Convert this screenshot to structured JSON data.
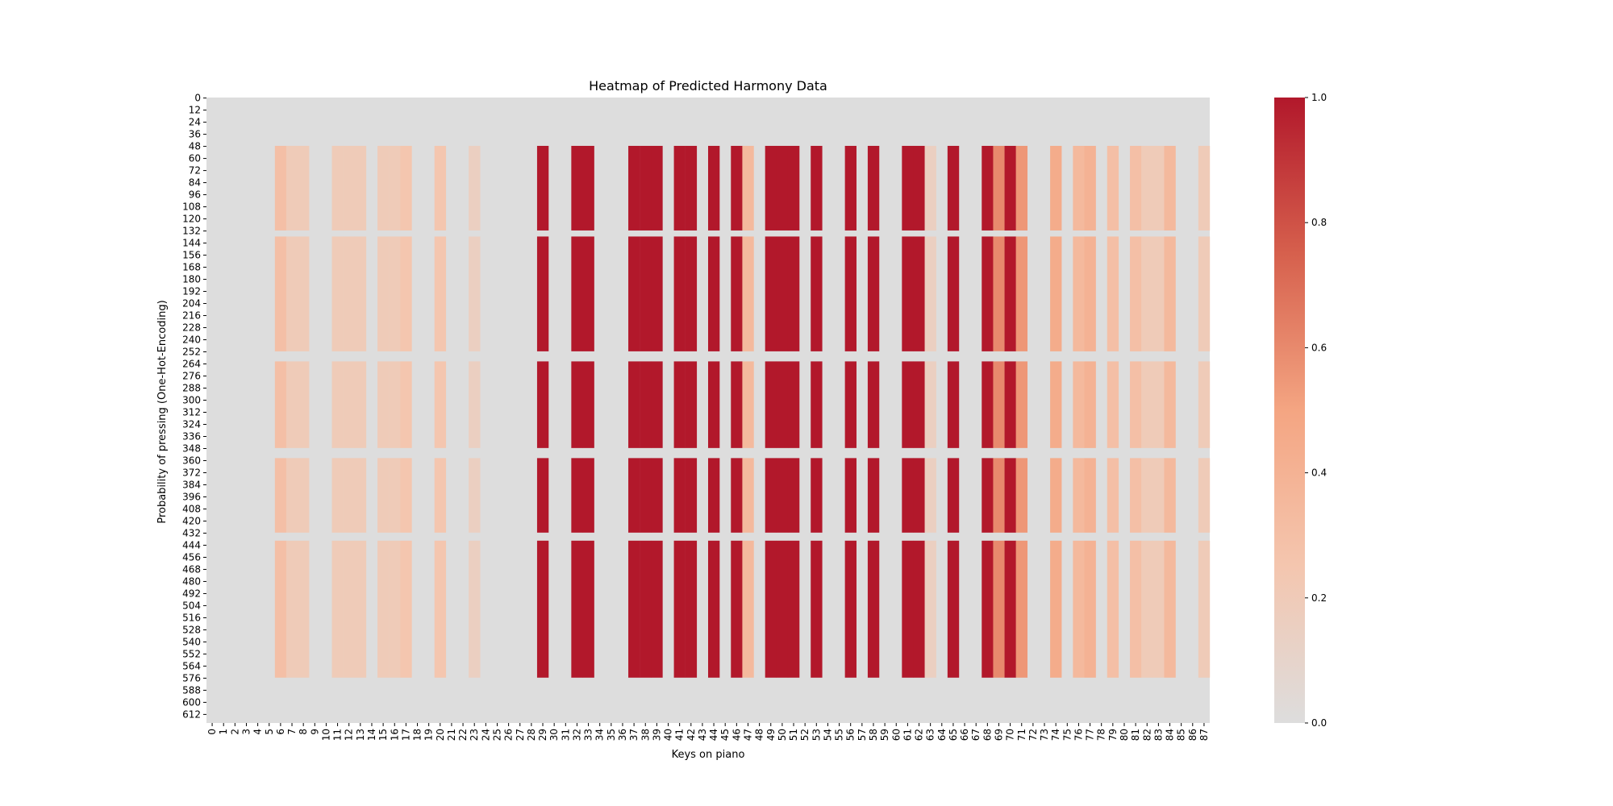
{
  "chart_data": {
    "type": "heatmap",
    "title": "Heatmap of Predicted Harmony Data",
    "xlabel": "Keys on piano",
    "ylabel": "Probability of pressing (One-Hot-Encoding)",
    "n_rows": 621,
    "n_cols": 88,
    "x_ticks": [
      0,
      1,
      2,
      3,
      4,
      5,
      6,
      7,
      8,
      9,
      10,
      11,
      12,
      13,
      14,
      15,
      16,
      17,
      18,
      19,
      20,
      21,
      22,
      23,
      24,
      25,
      26,
      27,
      28,
      29,
      30,
      31,
      32,
      33,
      34,
      35,
      36,
      37,
      38,
      39,
      40,
      41,
      42,
      43,
      44,
      45,
      46,
      47,
      48,
      49,
      50,
      51,
      52,
      53,
      54,
      55,
      56,
      57,
      58,
      59,
      60,
      61,
      62,
      63,
      64,
      65,
      66,
      67,
      68,
      69,
      70,
      71,
      72,
      73,
      74,
      75,
      76,
      77,
      78,
      79,
      80,
      81,
      82,
      83,
      84,
      85,
      86,
      87
    ],
    "y_ticks": [
      0,
      12,
      24,
      36,
      48,
      60,
      72,
      84,
      96,
      108,
      120,
      132,
      144,
      156,
      168,
      180,
      192,
      204,
      216,
      228,
      240,
      252,
      264,
      276,
      288,
      300,
      312,
      324,
      336,
      348,
      360,
      372,
      384,
      396,
      408,
      420,
      432,
      444,
      456,
      468,
      480,
      492,
      504,
      516,
      528,
      540,
      552,
      564,
      576,
      588,
      600,
      612
    ],
    "colorbar": {
      "range": [
        0,
        1
      ],
      "ticks": [
        "0.0",
        "0.2",
        "0.4",
        "0.6",
        "0.8",
        "1.0"
      ],
      "colormap": [
        "#dddddd",
        "#f4c6af",
        "#f4a582",
        "#d6604d",
        "#b2182b"
      ]
    },
    "active_row_range": [
      48,
      576
    ],
    "row_gaps": [
      [
        132,
        138
      ],
      [
        252,
        262
      ],
      [
        348,
        358
      ],
      [
        432,
        440
      ]
    ],
    "column_intensity": {
      "6": 0.3,
      "7": 0.2,
      "8": 0.2,
      "11": 0.2,
      "12": 0.2,
      "13": 0.2,
      "15": 0.2,
      "16": 0.2,
      "17": 0.25,
      "20": 0.25,
      "23": 0.15,
      "29": 1.0,
      "32": 1.0,
      "33": 1.0,
      "37": 1.0,
      "38": 1.0,
      "39": 1.0,
      "41": 1.0,
      "42": 1.0,
      "44": 1.0,
      "46": 1.0,
      "47": 0.35,
      "49": 1.0,
      "50": 1.0,
      "51": 1.0,
      "53": 1.0,
      "56": 1.0,
      "58": 1.0,
      "61": 1.0,
      "62": 1.0,
      "63": 0.15,
      "65": 1.0,
      "68": 1.0,
      "69": 0.6,
      "70": 1.0,
      "71": 0.55,
      "74": 0.45,
      "76": 0.35,
      "77": 0.4,
      "79": 0.3,
      "81": 0.3,
      "82": 0.2,
      "83": 0.2,
      "84": 0.35,
      "87": 0.2
    }
  }
}
